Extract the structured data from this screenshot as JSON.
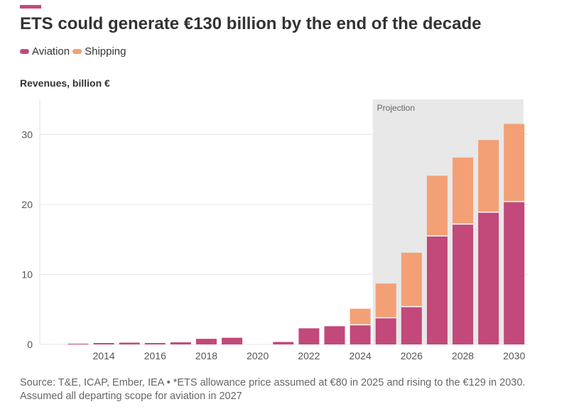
{
  "title": "ETS could generate €130 billion by the end of the decade",
  "legend": [
    {
      "name": "Aviation",
      "color": "#c2497a"
    },
    {
      "name": "Shipping",
      "color": "#f3a076"
    }
  ],
  "colors": {
    "accent": "#c2497a",
    "aviation": "#c2497a",
    "shipping": "#f3a076",
    "projection_bg": "#e8e8e8",
    "grid": "#e6e6e6"
  },
  "source": "Source: T&E, ICAP, Ember, IEA • *ETS allowance price assumed at €80 in 2025 and rising to the €129 in 2030. Assumed all departing scope for aviation in 2027",
  "chart_data": {
    "type": "bar",
    "stacked": true,
    "title": "ETS could generate €130 billion by the end of the decade",
    "ylabel": "Revenues, billion €",
    "xlabel": "",
    "ylim": [
      0,
      35
    ],
    "yticks": [
      0,
      10,
      20,
      30
    ],
    "xticks": [
      "2014",
      "2016",
      "2018",
      "2020",
      "2022",
      "2024",
      "2026",
      "2028",
      "2030"
    ],
    "categories": [
      "2013",
      "2014",
      "2015",
      "2016",
      "2017",
      "2018",
      "2019",
      "2020",
      "2021",
      "2022",
      "2023",
      "2024",
      "2025",
      "2026",
      "2027",
      "2028",
      "2029",
      "2030"
    ],
    "series": [
      {
        "name": "Aviation",
        "values": [
          0.1,
          0.2,
          0.25,
          0.2,
          0.3,
          0.8,
          0.95,
          0,
          0.35,
          2.3,
          2.6,
          2.8,
          3.8,
          5.4,
          15.5,
          17.2,
          18.9,
          20.4
        ]
      },
      {
        "name": "Shipping",
        "values": [
          0,
          0,
          0,
          0,
          0,
          0,
          0,
          0,
          0,
          0,
          0,
          2.3,
          4.9,
          7.7,
          8.6,
          9.5,
          10.3,
          11.1
        ]
      }
    ],
    "annotation": {
      "label": "Projection",
      "from": "2025",
      "to": "2030"
    },
    "grid": true
  }
}
